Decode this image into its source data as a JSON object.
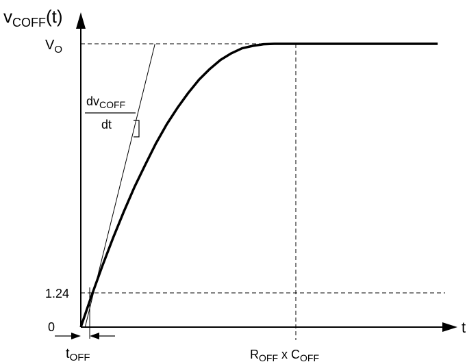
{
  "chart_data": {
    "type": "line",
    "ylabel": {
      "main": "v",
      "sub": "COFF",
      "suffix": "(t)"
    },
    "xlabel": "t",
    "y_ticks": [
      {
        "value": "0"
      },
      {
        "value": "1.24"
      },
      {
        "value": "V",
        "sub": "O"
      }
    ],
    "x_ticks": [
      {
        "label": "t",
        "sub": "OFF"
      },
      {
        "parts": [
          {
            "text": "R"
          },
          {
            "sub": "OFF"
          },
          {
            "text": " x C"
          },
          {
            "sub": "OFF"
          }
        ]
      }
    ],
    "annotation": {
      "numerator_main": "dv",
      "numerator_sub": "COFF",
      "denominator": "dt"
    },
    "curve": {
      "description": "v_COFF(t) rises from 0 and saturates at V_O",
      "points": [
        [
          0.0,
          0.0
        ],
        [
          0.05,
          0.38
        ],
        [
          0.1,
          0.74
        ],
        [
          0.15,
          1.08
        ],
        [
          0.2,
          1.4
        ],
        [
          0.25,
          1.7
        ],
        [
          0.3,
          1.97
        ],
        [
          0.35,
          2.23
        ],
        [
          0.4,
          2.46
        ],
        [
          0.45,
          2.66
        ],
        [
          0.5,
          2.84
        ],
        [
          0.55,
          3.0
        ],
        [
          0.6,
          3.13
        ],
        [
          0.65,
          3.24
        ],
        [
          0.7,
          3.32
        ],
        [
          0.75,
          3.38
        ],
        [
          0.8,
          3.41
        ],
        [
          0.85,
          3.43
        ],
        [
          0.9,
          3.435
        ],
        [
          1.0,
          3.435
        ],
        [
          1.2,
          3.435
        ],
        [
          1.5,
          3.435
        ],
        [
          1.66,
          3.435
        ]
      ]
    },
    "tangent": {
      "from": [
        0.02,
        0.0
      ],
      "to": [
        0.345,
        3.435
      ]
    },
    "reference_values": {
      "t_off": 0.05,
      "rc": 1.0,
      "v_threshold": 1.24,
      "v_o": 3.435
    },
    "axis_range": {
      "x": [
        0,
        1.75
      ],
      "y": [
        0,
        3.435
      ]
    }
  }
}
